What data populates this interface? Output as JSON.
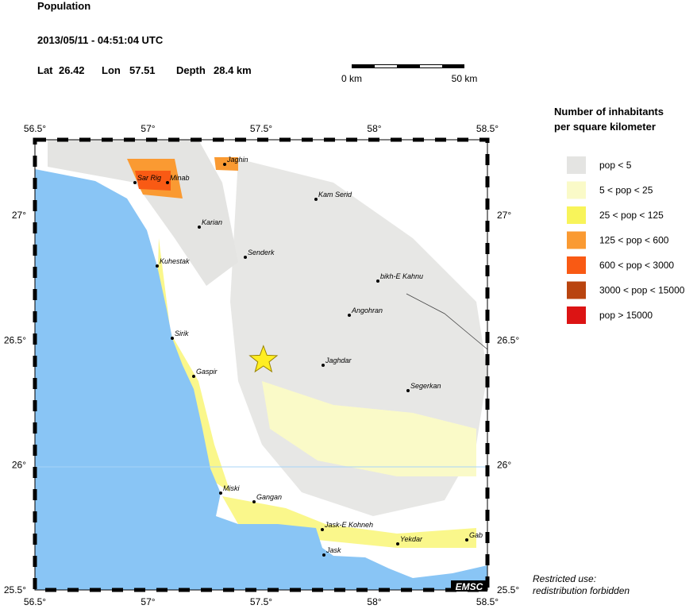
{
  "header": {
    "title": "Population",
    "datetime": "2013/05/11 - 04:51:04 UTC",
    "lat_label": "Lat",
    "lon_label": "Lon",
    "depth_label": "Depth",
    "depth": "28.4 km"
  },
  "scale_bar": {
    "start": "0 km",
    "end": "50 km"
  },
  "map": {
    "lon_ticks": [
      {
        "value": 56.5,
        "label": "56.5°"
      },
      {
        "value": 57,
        "label": "57°"
      },
      {
        "value": 57.5,
        "label": "57.5°"
      },
      {
        "value": 58,
        "label": "58°"
      },
      {
        "value": 58.5,
        "label": "58.5°"
      }
    ],
    "lat_ticks": [
      {
        "value": 27,
        "label": "27°"
      },
      {
        "value": 26.5,
        "label": "26.5°"
      },
      {
        "value": 26,
        "label": "26°"
      },
      {
        "value": 25.5,
        "label": "25.5°"
      }
    ],
    "epicenter": {
      "lat": 26.42,
      "lon": 57.51
    },
    "cities": [
      "Jaghin",
      "Sar Rig",
      "Minab",
      "Kam Serid",
      "Karian",
      "Senderk",
      "Kuhestak",
      "bikh-E Kahnu",
      "Angohran",
      "Sirik",
      "Jaghdar",
      "Gaspir",
      "Segerkan",
      "Miski",
      "Gangan",
      "Jask-E Kohneh",
      "Yekdar",
      "Gab",
      "Jask"
    ],
    "credit": "EMSC"
  },
  "legend": {
    "title_lines": [
      "Number of inhabitants",
      "per square kilometer"
    ],
    "items": [
      {
        "label": "pop < 5",
        "color": "#e4e4e2"
      },
      {
        "label": "5 < pop < 25",
        "color": "#fafac8"
      },
      {
        "label": "25 < pop < 125",
        "color": "#f8f45a"
      },
      {
        "label": "125 < pop < 600",
        "color": "#fa9a32"
      },
      {
        "label": "600 < pop < 3000",
        "color": "#f95a14"
      },
      {
        "label": "3000 < pop < 15000",
        "color": "#b9440f"
      },
      {
        "label": "pop > 15000",
        "color": "#dc1414"
      }
    ]
  },
  "notice": [
    "Restricted use:",
    "redistribution forbidden"
  ]
}
